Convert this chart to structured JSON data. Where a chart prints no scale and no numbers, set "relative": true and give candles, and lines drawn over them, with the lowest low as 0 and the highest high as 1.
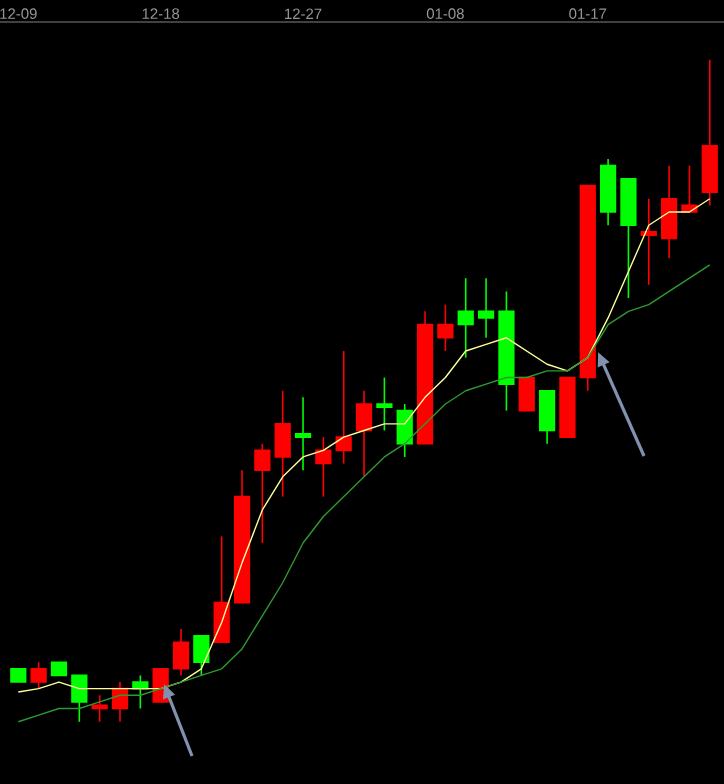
{
  "chart_data": {
    "type": "candlestick",
    "relative": true,
    "categories": [
      "12-09",
      null,
      null,
      null,
      null,
      null,
      null,
      "12-18",
      null,
      null,
      null,
      null,
      null,
      null,
      "12-27",
      null,
      null,
      null,
      null,
      null,
      null,
      "01-08",
      null,
      null,
      null,
      null,
      null,
      null,
      "01-17",
      null,
      null,
      null,
      null,
      null,
      null
    ],
    "ohlc": [
      [
        0.08,
        0.08,
        0.06,
        0.06
      ],
      [
        0.06,
        0.09,
        0.05,
        0.08
      ],
      [
        0.09,
        0.09,
        0.07,
        0.07
      ],
      [
        0.07,
        0.07,
        0.0,
        0.03
      ],
      [
        0.02,
        0.04,
        0.0,
        0.025
      ],
      [
        0.02,
        0.06,
        0.0,
        0.05
      ],
      [
        0.06,
        0.07,
        0.02,
        0.05
      ],
      [
        0.03,
        0.08,
        0.03,
        0.08
      ],
      [
        0.08,
        0.14,
        0.07,
        0.12
      ],
      [
        0.13,
        0.13,
        0.07,
        0.09
      ],
      [
        0.12,
        0.28,
        0.12,
        0.18
      ],
      [
        0.18,
        0.38,
        0.18,
        0.34
      ],
      [
        0.38,
        0.42,
        0.27,
        0.41
      ],
      [
        0.4,
        0.5,
        0.34,
        0.45
      ],
      [
        0.435,
        0.49,
        0.38,
        0.43
      ],
      [
        0.39,
        0.43,
        0.34,
        0.41
      ],
      [
        0.41,
        0.56,
        0.39,
        0.43
      ],
      [
        0.44,
        0.5,
        0.37,
        0.48
      ],
      [
        0.48,
        0.52,
        0.44,
        0.475
      ],
      [
        0.47,
        0.48,
        0.4,
        0.42
      ],
      [
        0.42,
        0.62,
        0.42,
        0.6
      ],
      [
        0.58,
        0.63,
        0.56,
        0.6
      ],
      [
        0.62,
        0.67,
        0.55,
        0.6
      ],
      [
        0.62,
        0.67,
        0.58,
        0.61
      ],
      [
        0.62,
        0.65,
        0.47,
        0.51
      ],
      [
        0.47,
        0.52,
        0.47,
        0.52
      ],
      [
        0.5,
        0.5,
        0.42,
        0.44
      ],
      [
        0.43,
        0.52,
        0.43,
        0.52
      ],
      [
        0.52,
        0.81,
        0.5,
        0.81
      ],
      [
        0.84,
        0.85,
        0.75,
        0.77
      ],
      [
        0.82,
        0.82,
        0.64,
        0.75
      ],
      [
        0.735,
        0.79,
        0.66,
        0.74
      ],
      [
        0.73,
        0.84,
        0.7,
        0.79
      ],
      [
        0.77,
        0.84,
        0.77,
        0.78
      ],
      [
        0.8,
        1.0,
        0.78,
        0.87
      ]
    ],
    "colors": [
      "#00ff00",
      "#ff0000",
      "#00ff00",
      "#00ff00",
      "#ff0000",
      "#ff0000",
      "#00ff00",
      "#ff0000",
      "#ff0000",
      "#00ff00",
      "#ff0000",
      "#ff0000",
      "#ff0000",
      "#ff0000",
      "#00ff00",
      "#ff0000",
      "#ff0000",
      "#ff0000",
      "#00ff00",
      "#00ff00",
      "#ff0000",
      "#ff0000",
      "#00ff00",
      "#00ff00",
      "#00ff00",
      "#ff0000",
      "#00ff00",
      "#ff0000",
      "#ff0000",
      "#00ff00",
      "#00ff00",
      "#ff0000",
      "#ff0000",
      "#ff0000",
      "#ff0000"
    ],
    "series": [
      {
        "type": "line",
        "color": "#ffff99",
        "values": [
          0.045,
          0.05,
          0.06,
          0.05,
          0.05,
          0.05,
          0.05,
          0.05,
          0.06,
          0.08,
          0.15,
          0.24,
          0.32,
          0.37,
          0.4,
          0.41,
          0.43,
          0.44,
          0.45,
          0.45,
          0.49,
          0.52,
          0.56,
          0.57,
          0.58,
          0.56,
          0.54,
          0.53,
          0.55,
          0.61,
          0.68,
          0.75,
          0.77,
          0.77,
          0.79
        ]
      },
      {
        "type": "line",
        "color": "#2e9a2e",
        "values": [
          0.0,
          0.01,
          0.02,
          0.02,
          0.03,
          0.04,
          0.04,
          0.05,
          0.06,
          0.07,
          0.08,
          0.11,
          0.16,
          0.21,
          0.27,
          0.31,
          0.34,
          0.37,
          0.4,
          0.42,
          0.45,
          0.48,
          0.5,
          0.51,
          0.52,
          0.52,
          0.53,
          0.53,
          0.55,
          0.6,
          0.62,
          0.63,
          0.65,
          0.67,
          0.69
        ]
      }
    ]
  }
}
